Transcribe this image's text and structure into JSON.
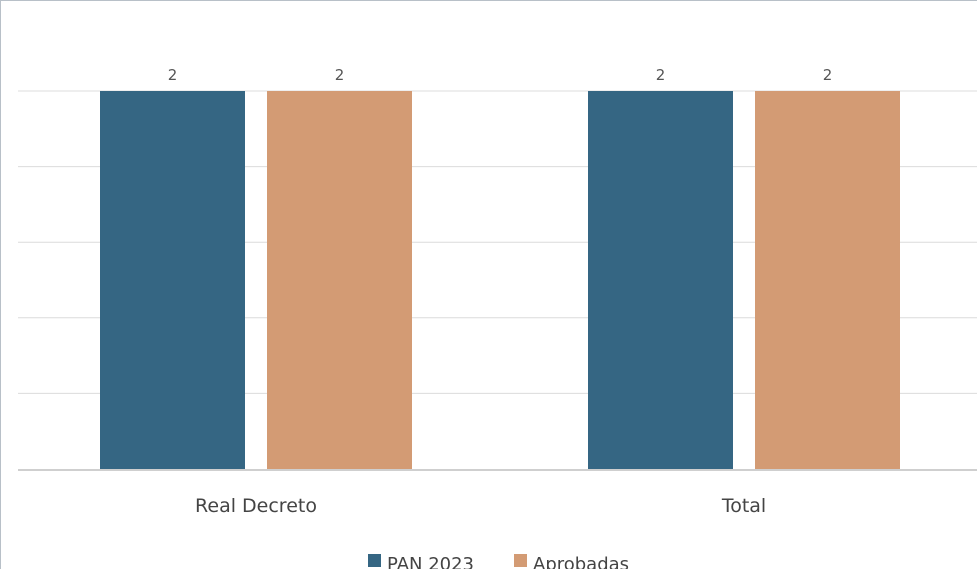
{
  "chart_data": {
    "type": "bar",
    "categories": [
      "Real Decreto",
      "Total"
    ],
    "series": [
      {
        "name": "PAN 2023",
        "values": [
          2,
          2
        ],
        "color": "#356683"
      },
      {
        "name": "Aprobadas",
        "values": [
          2,
          2
        ],
        "color": "#d39b74"
      }
    ],
    "title": "",
    "xlabel": "",
    "ylabel": "",
    "ylim": [
      0,
      2
    ],
    "grid": true,
    "data_labels": true,
    "legend": "bottom"
  }
}
